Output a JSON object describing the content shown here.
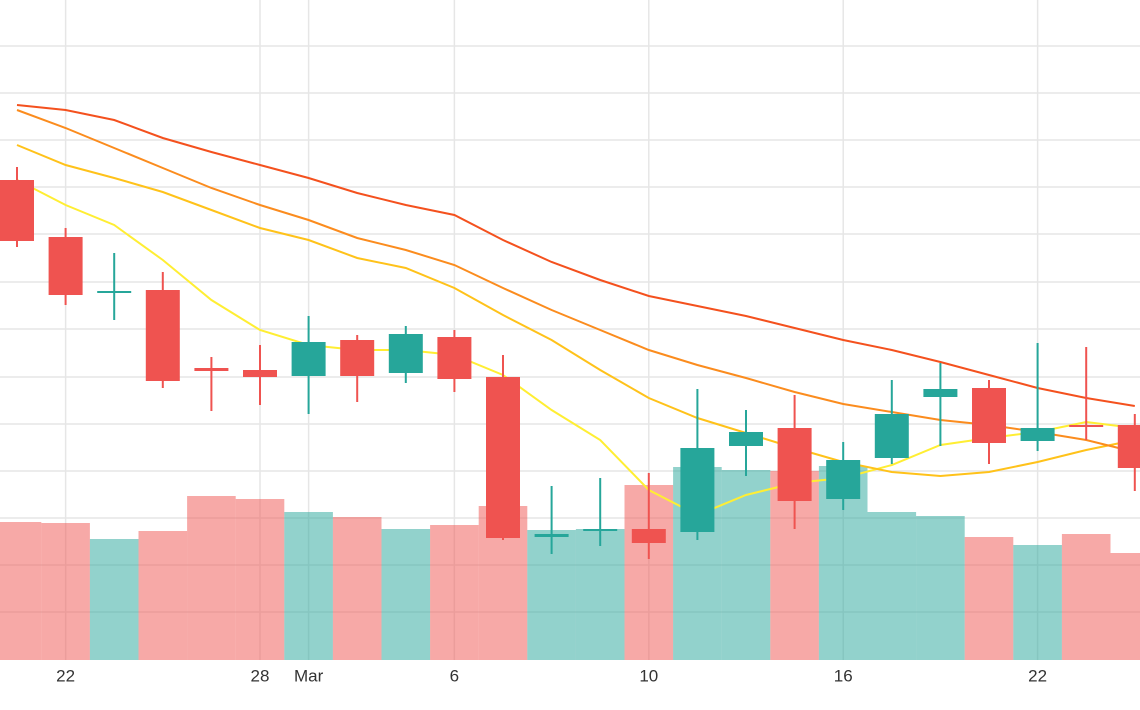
{
  "chart_data": {
    "type": "candlestick",
    "categories": [
      null,
      "22",
      null,
      null,
      null,
      "28",
      "Mar",
      null,
      null,
      "6",
      null,
      null,
      null,
      "10",
      null,
      null,
      null,
      "16",
      null,
      null,
      null,
      "22",
      null,
      null
    ],
    "open": [
      480,
      423,
      367,
      370,
      292,
      290,
      284,
      320,
      287,
      323,
      283,
      123,
      129,
      131,
      128,
      214,
      232,
      161,
      202,
      263,
      272,
      219,
      235,
      235
    ],
    "high": [
      493,
      432,
      407,
      388,
      303,
      315,
      344,
      325,
      334,
      330,
      305,
      174,
      182,
      187,
      271,
      250,
      265,
      218,
      280,
      297,
      280,
      317,
      313,
      246
    ],
    "low": [
      413,
      355,
      340,
      272,
      249,
      255,
      246,
      258,
      277,
      268,
      120,
      106,
      114,
      101,
      120,
      184,
      131,
      150,
      196,
      214,
      196,
      209,
      220,
      169
    ],
    "close": [
      419,
      365,
      369,
      279,
      289,
      283,
      318,
      284,
      326,
      281,
      122,
      126,
      131,
      117,
      212,
      228,
      159,
      200,
      246,
      271,
      217,
      232,
      233,
      192
    ],
    "volume": [
      138,
      137,
      121,
      129,
      164,
      161,
      148,
      143,
      131,
      135,
      154,
      130,
      131,
      175,
      193,
      190,
      189,
      194,
      148,
      144,
      123,
      115,
      126,
      107
    ],
    "up_color": "#26a69a",
    "down_color": "#ef5350",
    "series": [
      {
        "color": "#ffee33",
        "values": [
          480,
          455,
          435,
          400,
          360,
          330,
          315,
          310,
          310,
          305,
          285,
          250,
          220,
          170,
          145,
          165,
          177,
          182,
          195,
          215,
          222,
          228,
          238,
          232
        ]
      },
      {
        "color": "#ffc21a",
        "values": [
          515,
          495,
          482,
          468,
          450,
          432,
          420,
          402,
          392,
          372,
          345,
          320,
          290,
          262,
          242,
          227,
          212,
          198,
          188,
          184,
          188,
          198,
          210,
          220
        ]
      },
      {
        "color": "#fb8c1e",
        "values": [
          550,
          532,
          512,
          492,
          472,
          455,
          440,
          422,
          410,
          395,
          372,
          350,
          330,
          310,
          295,
          282,
          268,
          256,
          248,
          240,
          235,
          228,
          220,
          208
        ]
      },
      {
        "color": "#f4511e",
        "values": [
          555,
          550,
          540,
          522,
          508,
          495,
          482,
          467,
          455,
          445,
          420,
          398,
          380,
          364,
          354,
          344,
          332,
          320,
          310,
          298,
          285,
          272,
          262,
          254
        ]
      }
    ],
    "ylim": [
      0,
      660
    ],
    "yticks": [
      48,
      95,
      142,
      189,
      236,
      283,
      331,
      378,
      426,
      473,
      520,
      567,
      614
    ],
    "grid": true
  }
}
